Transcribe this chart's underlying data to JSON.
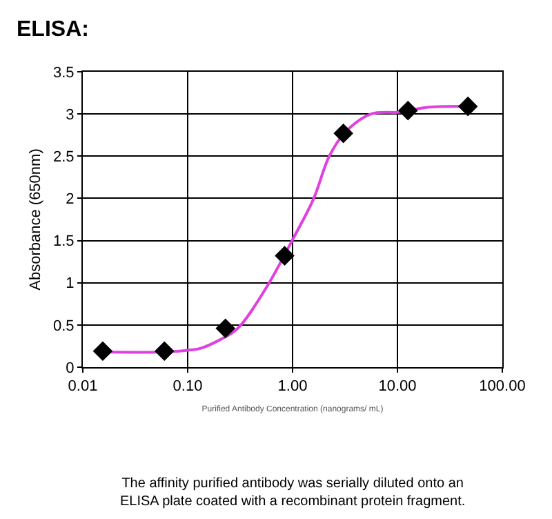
{
  "chart_data": {
    "type": "scatter",
    "title": "ELISA:",
    "xlabel": "Purified Antibody Concentration (nanograms/ mL)",
    "ylabel": "Absorbance (650nm)",
    "annotations": [
      "The affinity purified antibody was serially diluted onto an ELISA plate coated with a recombinant protein fragment."
    ],
    "log": "x",
    "grid": true,
    "xlim": [
      0.01,
      100
    ],
    "xticks": [
      {
        "value": 0.01,
        "label": "0.01"
      },
      {
        "value": 0.1,
        "label": "0.10"
      },
      {
        "value": 1,
        "label": "1.00"
      },
      {
        "value": 10,
        "label": "10.00"
      },
      {
        "value": 100,
        "label": "100.00"
      }
    ],
    "ylim": [
      0,
      3.5
    ],
    "yticks": [
      0,
      0.5,
      1,
      1.5,
      2,
      2.5,
      3,
      3.5
    ],
    "series": [
      {
        "type": "line",
        "color": "#e040e0",
        "marker": "none",
        "line_style": "solid",
        "x": [
          0.0155,
          0.06,
          0.1,
          0.13,
          0.2,
          0.3,
          0.56,
          1.0,
          1.58,
          2.24,
          3.16,
          5.6,
          10,
          12.6,
          20,
          47
        ],
        "values": [
          0.18,
          0.18,
          0.2,
          0.22,
          0.32,
          0.46,
          0.94,
          1.51,
          1.99,
          2.5,
          2.78,
          3.0,
          3.02,
          3.04,
          3.08,
          3.09
        ]
      },
      {
        "color": "#000000",
        "marker": "diamond",
        "x": [
          0.0155,
          0.06,
          0.229,
          0.84,
          3.05,
          12.6,
          47
        ],
        "values": [
          0.19,
          0.19,
          0.46,
          1.32,
          2.77,
          3.04,
          3.09
        ]
      }
    ]
  }
}
